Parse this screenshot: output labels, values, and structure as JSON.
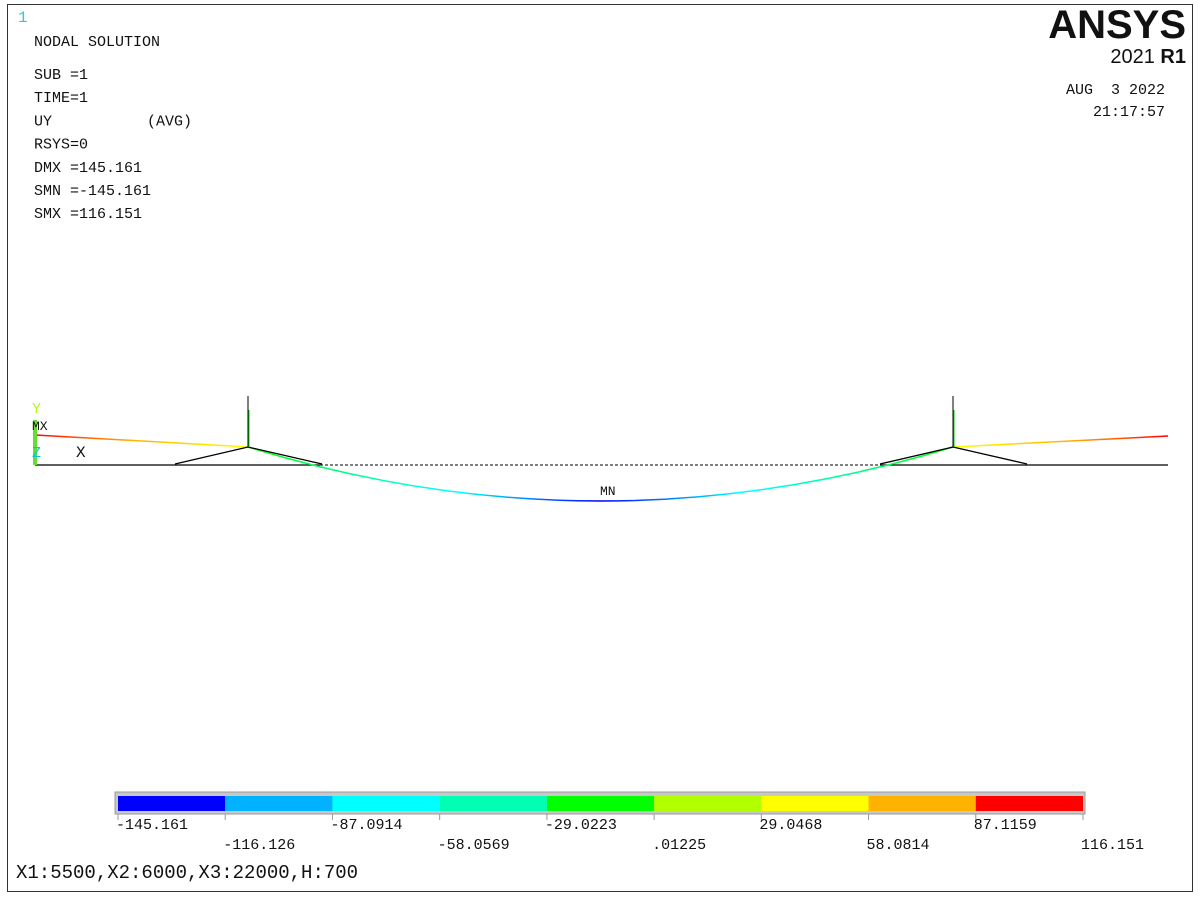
{
  "window_number": "1",
  "header": {
    "title": "NODAL SOLUTION",
    "lines": [
      "SUB =1",
      "TIME=1",
      "UY",
      "(AVG)",
      "RSYS=0",
      "DMX =145.161",
      "SMN =-145.161",
      "SMX =116.151"
    ]
  },
  "logo": {
    "brand": "ANSYS",
    "version": "2021",
    "release": "R1"
  },
  "date": "AUG  3 2022",
  "time": "21:17:57",
  "plot": {
    "y_axis": "Y",
    "max_marker": "MX",
    "z_axis": "Z",
    "x_axis": "X",
    "min_marker": "MN"
  },
  "legend": {
    "colors": [
      "#0000ff",
      "#00b2ff",
      "#00ffff",
      "#00ffb2",
      "#00ff00",
      "#b2ff00",
      "#ffff00",
      "#ffb200",
      "#ff0000"
    ],
    "labels": [
      "-145.161",
      "-116.126",
      "-87.0914",
      "-58.0569",
      "-29.0223",
      ".01225",
      "29.0468",
      "58.0814",
      "87.1159",
      "116.151"
    ]
  },
  "footer": "X1:5500,X2:6000,X3:22000,H:700"
}
